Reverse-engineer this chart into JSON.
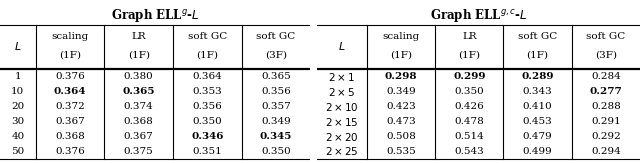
{
  "left_title": "Graph ELL$^g$-$L$",
  "right_title": "Graph ELL$^{g,c}$-$L$",
  "col_headers": [
    "scaling\n(1F)",
    "LR\n(1F)",
    "soft GC\n(1F)",
    "soft GC\n(3F)"
  ],
  "left_row_labels": [
    "1",
    "10",
    "20",
    "30",
    "40",
    "50"
  ],
  "left_data": [
    [
      "0.376",
      "0.380",
      "0.364",
      "0.365"
    ],
    [
      "0.364",
      "0.365",
      "0.353",
      "0.356"
    ],
    [
      "0.372",
      "0.374",
      "0.356",
      "0.357"
    ],
    [
      "0.367",
      "0.368",
      "0.350",
      "0.349"
    ],
    [
      "0.368",
      "0.367",
      "0.346",
      "0.345"
    ],
    [
      "0.376",
      "0.375",
      "0.351",
      "0.350"
    ]
  ],
  "left_bold": [
    [
      false,
      false,
      false,
      false
    ],
    [
      true,
      true,
      false,
      false
    ],
    [
      false,
      false,
      false,
      false
    ],
    [
      false,
      false,
      false,
      false
    ],
    [
      false,
      false,
      true,
      true
    ],
    [
      false,
      false,
      false,
      false
    ]
  ],
  "right_row_labels": [
    "2 \\times 1",
    "2 \\times 5",
    "2 \\times 10",
    "2 \\times 15",
    "2 \\times 20",
    "2 \\times 25"
  ],
  "right_data": [
    [
      "0.298",
      "0.299",
      "0.289",
      "0.284"
    ],
    [
      "0.349",
      "0.350",
      "0.343",
      "0.277"
    ],
    [
      "0.423",
      "0.426",
      "0.410",
      "0.288"
    ],
    [
      "0.473",
      "0.478",
      "0.453",
      "0.291"
    ],
    [
      "0.508",
      "0.514",
      "0.479",
      "0.292"
    ],
    [
      "0.535",
      "0.543",
      "0.499",
      "0.294"
    ]
  ],
  "right_bold": [
    [
      true,
      true,
      true,
      false
    ],
    [
      false,
      false,
      false,
      true
    ],
    [
      false,
      false,
      false,
      false
    ],
    [
      false,
      false,
      false,
      false
    ],
    [
      false,
      false,
      false,
      false
    ],
    [
      false,
      false,
      false,
      false
    ]
  ],
  "fig_width": 6.4,
  "fig_height": 1.63,
  "dpi": 100,
  "title_fontsize": 8.5,
  "header_fontsize": 7.5,
  "data_fontsize": 7.5,
  "label_fontsize": 8.0
}
